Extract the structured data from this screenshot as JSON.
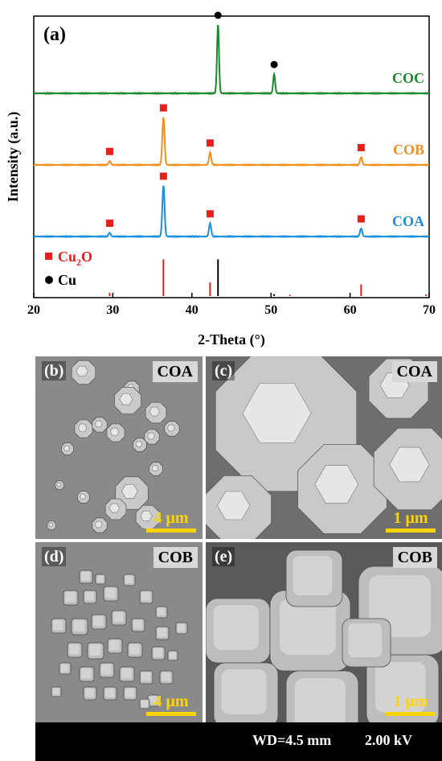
{
  "figure": {
    "panel_a_label": "(a)",
    "legend": [
      {
        "marker": "square",
        "color": "#e8201c",
        "label_main": "Cu",
        "label_sub": "2",
        "label_tail": "O"
      },
      {
        "marker": "circle",
        "color": "#000000",
        "label_main": "Cu",
        "label_sub": "",
        "label_tail": ""
      }
    ],
    "colors": {
      "COC": "#1a8a2c",
      "COB": "#f0901e",
      "COA": "#1a8fdc",
      "cu2o_marker": "#e8201c",
      "cu_marker": "#000000",
      "cu2o_ref": "#d81f1f",
      "cu_ref": "#000000"
    }
  },
  "chart_data": {
    "type": "line",
    "xlabel": "2-Theta (°)",
    "ylabel": "Intensity (a.u.)",
    "xlim": [
      20,
      70
    ],
    "xticks": [
      20,
      30,
      40,
      50,
      60,
      70
    ],
    "yticks_shown": false,
    "series": [
      {
        "name": "COC",
        "peaks": [
          {
            "x": 43.3,
            "h": 1.0
          },
          {
            "x": 50.4,
            "h": 0.28
          }
        ],
        "markers": [
          {
            "x": 43.3,
            "type": "circle"
          },
          {
            "x": 50.4,
            "type": "circle"
          }
        ]
      },
      {
        "name": "COB",
        "peaks": [
          {
            "x": 29.6,
            "h": 0.05
          },
          {
            "x": 36.4,
            "h": 0.62
          },
          {
            "x": 42.3,
            "h": 0.16
          },
          {
            "x": 61.4,
            "h": 0.1
          }
        ],
        "markers": [
          {
            "x": 29.6,
            "type": "square"
          },
          {
            "x": 36.4,
            "type": "square"
          },
          {
            "x": 42.3,
            "type": "square"
          },
          {
            "x": 61.4,
            "type": "square"
          }
        ]
      },
      {
        "name": "COA",
        "peaks": [
          {
            "x": 29.6,
            "h": 0.05
          },
          {
            "x": 36.4,
            "h": 0.7
          },
          {
            "x": 42.3,
            "h": 0.18
          },
          {
            "x": 61.4,
            "h": 0.11
          }
        ],
        "markers": [
          {
            "x": 29.6,
            "type": "square"
          },
          {
            "x": 36.4,
            "type": "square"
          },
          {
            "x": 42.3,
            "type": "square"
          },
          {
            "x": 61.4,
            "type": "square"
          }
        ]
      }
    ],
    "reference_lines": [
      {
        "phase": "Cu2O",
        "x": 29.6,
        "h": 0.08
      },
      {
        "phase": "Cu2O",
        "x": 36.4,
        "h": 0.95
      },
      {
        "phase": "Cu2O",
        "x": 42.3,
        "h": 0.35
      },
      {
        "phase": "Cu2O",
        "x": 52.4,
        "h": 0.03
      },
      {
        "phase": "Cu2O",
        "x": 61.4,
        "h": 0.3
      },
      {
        "phase": "Cu2O",
        "x": 69.6,
        "h": 0.04
      },
      {
        "phase": "Cu",
        "x": 43.3,
        "h": 0.95
      },
      {
        "phase": "Cu",
        "x": 50.4,
        "h": 0.05
      }
    ]
  },
  "sem_panels": [
    {
      "label": "(b)",
      "sample": "COA",
      "scale": "4 μm",
      "shape": "polyhedra-sparse"
    },
    {
      "label": "(c)",
      "sample": "COA",
      "scale": "1 μm",
      "shape": "polyhedra-zoom"
    },
    {
      "label": "(d)",
      "sample": "COB",
      "scale": "4 μm",
      "shape": "cubes-cluster"
    },
    {
      "label": "(e)",
      "sample": "COB",
      "scale": "1 μm",
      "shape": "cubes-zoom"
    }
  ],
  "footer": {
    "wd": "WD=4.5 mm",
    "kv": "2.00 kV"
  }
}
